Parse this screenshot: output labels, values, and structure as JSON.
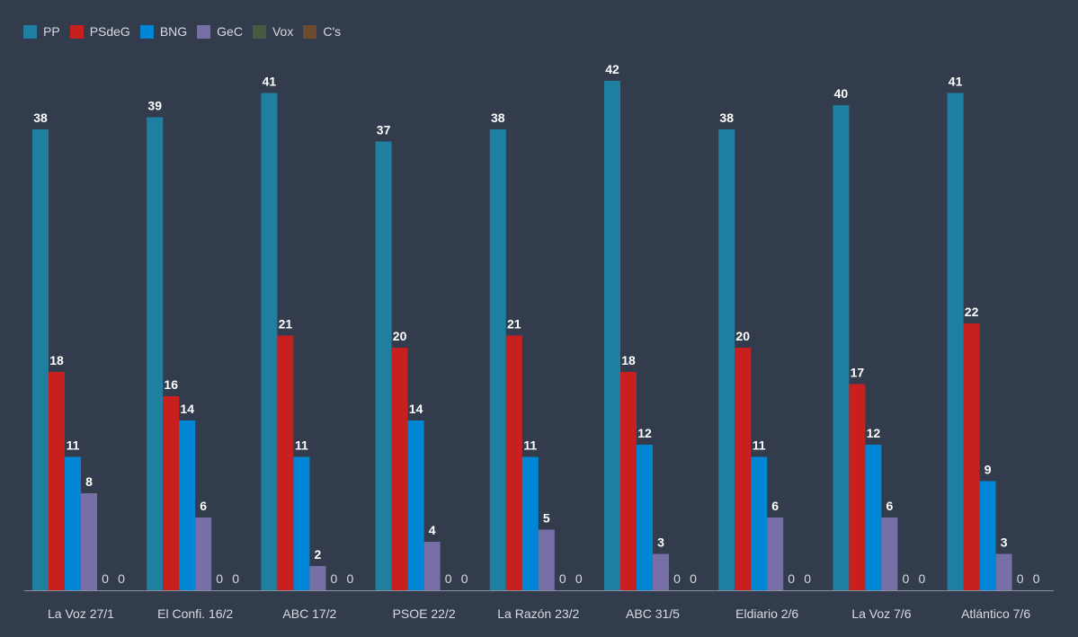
{
  "chart_data": {
    "type": "bar",
    "categories": [
      "La Voz 27/1",
      "El Confi. 16/2",
      "ABC 17/2",
      "PSOE 22/2",
      "La Razón 23/2",
      "ABC 31/5",
      "Eldiario 2/6",
      "La Voz 7/6",
      "Atlántico 7/6"
    ],
    "series": [
      {
        "name": "PP",
        "color": "#1f7fa0",
        "values": [
          38,
          39,
          41,
          37,
          38,
          42,
          38,
          40,
          41
        ]
      },
      {
        "name": "PSdeG",
        "color": "#c8201f",
        "values": [
          18,
          16,
          21,
          20,
          21,
          18,
          20,
          17,
          22
        ]
      },
      {
        "name": "BNG",
        "color": "#0086d4",
        "values": [
          11,
          14,
          11,
          14,
          11,
          12,
          11,
          12,
          9
        ]
      },
      {
        "name": "GeC",
        "color": "#7670a6",
        "values": [
          8,
          6,
          2,
          4,
          5,
          3,
          6,
          6,
          3
        ]
      },
      {
        "name": "Vox",
        "color": "#4a5a40",
        "values": [
          0,
          0,
          0,
          0,
          0,
          0,
          0,
          0,
          0
        ]
      },
      {
        "name": "C's",
        "color": "#6e4b2e",
        "values": [
          0,
          0,
          0,
          0,
          0,
          0,
          0,
          0,
          0
        ]
      }
    ],
    "legend": "top-left",
    "grid": false,
    "ylim": [
      0,
      42
    ],
    "data_labels": true
  }
}
